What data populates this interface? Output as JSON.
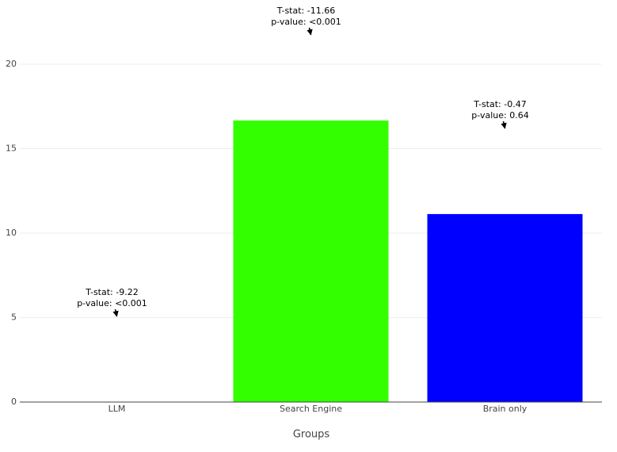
{
  "chart_data": {
    "type": "bar",
    "x_label": "Groups",
    "categories": [
      "LLM",
      "Search Engine",
      "Brain only"
    ],
    "values": [
      0,
      16.67,
      11.13
    ],
    "colors": [
      "#ff0000",
      "#33ff00",
      "#0000ff"
    ],
    "annotations": [
      {
        "lines": [
          "T-stat: -9.22",
          "p-value: <0.001"
        ]
      },
      {
        "lines": [
          "T-stat: -11.66",
          "p-value: <0.001"
        ]
      },
      {
        "lines": [
          "T-stat: -0.47",
          "p-value: 0.64"
        ]
      }
    ],
    "ylim": [
      0,
      22
    ],
    "yticks": [
      0,
      5,
      10,
      15,
      20
    ],
    "grid": true
  }
}
